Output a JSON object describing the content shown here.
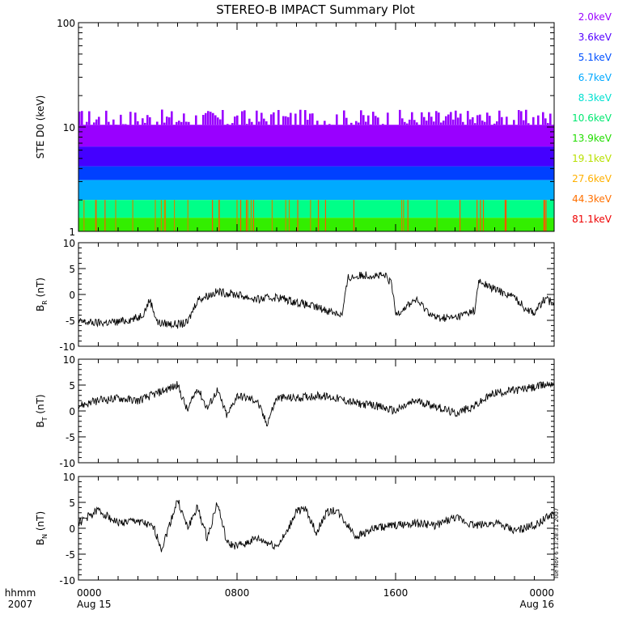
{
  "title": "STEREO-B IMPACT Summary Plot",
  "timestamp": "Tue Nov  6 13:28:31 2007",
  "time_axis": {
    "row1_labels": [
      "hhmm",
      "0000",
      "0800",
      "1600",
      "0000"
    ],
    "row2_labels": [
      "2007",
      "Aug 15",
      "",
      "",
      "Aug 16"
    ],
    "tick_hours": [
      0,
      8,
      16,
      24
    ]
  },
  "chart_data": [
    {
      "type": "area",
      "ylabel": "STE D0 (keV)",
      "yscale": "log",
      "ylim": [
        1,
        100
      ],
      "ytick_values": [
        1,
        10,
        100
      ],
      "ytick_labels": [
        "1",
        "10",
        "100"
      ],
      "legend": [
        {
          "label": "2.0keV",
          "color": "#9900ff"
        },
        {
          "label": "3.6keV",
          "color": "#5500ff"
        },
        {
          "label": "5.1keV",
          "color": "#0050ff"
        },
        {
          "label": "6.7keV",
          "color": "#00a8ff"
        },
        {
          "label": "8.3keV",
          "color": "#00e0d0"
        },
        {
          "label": "10.6keV",
          "color": "#00e870"
        },
        {
          "label": "13.9keV",
          "color": "#22dd00"
        },
        {
          "label": "19.1keV",
          "color": "#b8e000"
        },
        {
          "label": "27.6keV",
          "color": "#ffb000"
        },
        {
          "label": "44.3keV",
          "color": "#ff7000"
        },
        {
          "label": "81.1keV",
          "color": "#ee0000"
        }
      ],
      "bands": [
        {
          "color": "#9900ff",
          "low": 6.5,
          "high": 10.5
        },
        {
          "color": "#4400ff",
          "low": 4.2,
          "high": 6.5
        },
        {
          "color": "#0040ff",
          "low": 3.1,
          "high": 4.2
        },
        {
          "color": "#00aaff",
          "low": 2.0,
          "high": 3.1
        },
        {
          "color": "#00ff88",
          "low": 1.35,
          "high": 2.0
        },
        {
          "color": "#33ee00",
          "low": 1.0,
          "high": 1.35
        }
      ]
    },
    {
      "type": "line",
      "ylabel": "B",
      "ylabel_sub": "R",
      "ylabel_unit": "(nT)",
      "ylim": [
        -10,
        10
      ],
      "ytick_values": [
        -10,
        -5,
        0,
        5,
        10
      ],
      "ytick_labels": [
        "-10",
        "-5",
        "0",
        "5",
        "10"
      ],
      "x_hours": [
        0,
        1,
        2,
        3,
        3.3,
        3.6,
        4,
        5,
        5.5,
        6,
        7,
        8,
        9,
        10,
        11,
        12,
        13,
        13.3,
        13.6,
        14.5,
        15.5,
        15.8,
        16,
        17,
        18,
        19,
        20,
        20.2,
        21,
        22,
        22.5,
        23,
        23.5,
        24
      ],
      "values": [
        -5.3,
        -5.5,
        -5.3,
        -4.5,
        -3.5,
        -1.0,
        -5.5,
        -5.8,
        -5.5,
        -1.0,
        0.5,
        0.0,
        -1.0,
        -0.5,
        -1.5,
        -2.5,
        -3.5,
        -4.0,
        3.2,
        3.8,
        3.5,
        2.0,
        -3.8,
        -1.0,
        -4.5,
        -4.5,
        -3.0,
        2.5,
        1.0,
        -0.5,
        -2.5,
        -3.5,
        -1.0,
        -1.5
      ]
    },
    {
      "type": "line",
      "ylabel": "B",
      "ylabel_sub": "T",
      "ylabel_unit": "(nT)",
      "ylim": [
        -10,
        10
      ],
      "ytick_values": [
        -10,
        -5,
        0,
        5,
        10
      ],
      "ytick_labels": [
        "-10",
        "-5",
        "0",
        "5",
        "10"
      ],
      "x_hours": [
        0,
        1,
        2,
        3,
        4,
        5,
        5.5,
        6,
        6.5,
        7,
        7.5,
        8,
        9,
        9.5,
        10,
        11,
        12,
        13,
        14,
        15,
        16,
        17,
        18,
        19,
        20,
        21,
        22,
        23,
        24
      ],
      "values": [
        1.0,
        2.0,
        2.5,
        2.0,
        3.5,
        5.0,
        0.0,
        4.5,
        0.5,
        4.0,
        -1.0,
        3.0,
        2.0,
        -2.5,
        2.5,
        2.5,
        3.0,
        2.5,
        1.5,
        1.0,
        0.0,
        2.0,
        1.0,
        -0.5,
        1.0,
        3.5,
        4.0,
        4.5,
        5.5
      ]
    },
    {
      "type": "line",
      "ylabel": "B",
      "ylabel_sub": "N",
      "ylabel_unit": "(nT)",
      "ylim": [
        -10,
        10
      ],
      "ytick_values": [
        -10,
        -5,
        0,
        5,
        10
      ],
      "ytick_labels": [
        "-10",
        "-5",
        "0",
        "5",
        "10"
      ],
      "x_hours": [
        0,
        1,
        2,
        3,
        3.8,
        4.2,
        5,
        5.5,
        6,
        6.5,
        7,
        7.5,
        8,
        9,
        10,
        10.5,
        11,
        11.5,
        12,
        12.5,
        13,
        14,
        15,
        16,
        17,
        18,
        19,
        20,
        21,
        22,
        23,
        24
      ],
      "values": [
        1.0,
        3.5,
        1.0,
        1.5,
        0.0,
        -4.0,
        5.5,
        0.0,
        4.0,
        -2.0,
        5.0,
        -3.0,
        -3.5,
        -2.0,
        -3.5,
        -1.0,
        3.5,
        3.5,
        -1.0,
        3.0,
        3.5,
        -1.5,
        0.0,
        0.5,
        1.0,
        0.5,
        2.0,
        0.5,
        1.0,
        -0.5,
        0.5,
        3.0
      ]
    }
  ]
}
